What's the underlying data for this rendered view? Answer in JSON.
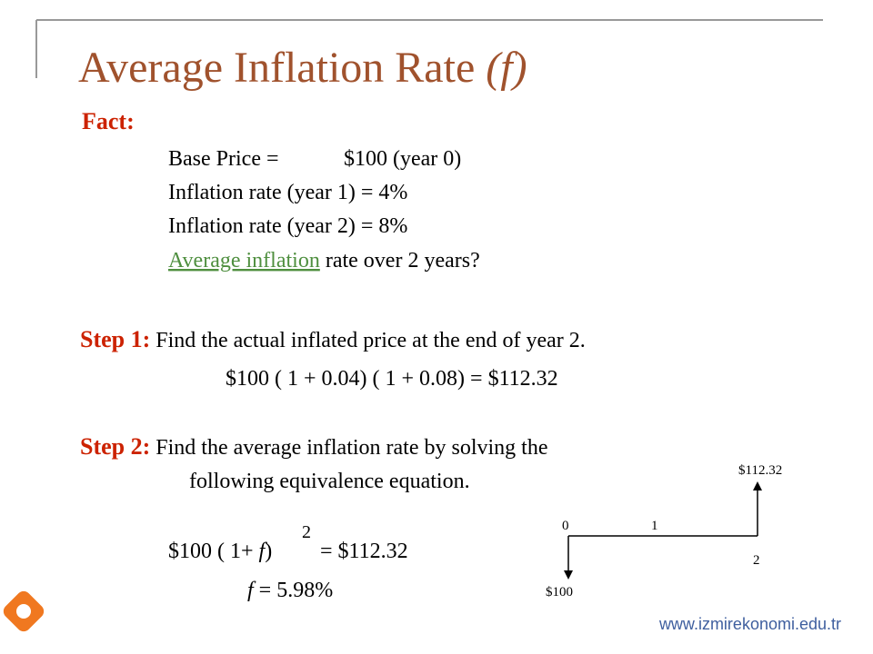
{
  "title": "Average Inflation Rate",
  "title_var": "(f)",
  "fact": {
    "heading": "Fact:",
    "base_label": "Base Price =",
    "base_value": "$100 (year 0)",
    "line1": "Inflation rate (year 1) = 4%",
    "line2": "Inflation rate (year 2) = 8%",
    "question_link": "Average inflation",
    "question_rest": " rate over 2 years?"
  },
  "step1": {
    "label": "Step 1:",
    "text": "Find the actual inflated price at the end of year 2.",
    "equation": "$100 ( 1 + 0.04) ( 1 + 0.08) = $112.32"
  },
  "step2": {
    "label": "Step 2:",
    "text1": "Find the average inflation rate by solving the",
    "text2": "following equivalence equation.",
    "equation_left": "$100 ( 1+ ",
    "equation_var": "f",
    "equation_close": ")",
    "exponent": "2",
    "equation_right": "= $112.32",
    "result_var": "f",
    "result_rest": " = 5.98%"
  },
  "diagram": {
    "t0": "0",
    "t1": "1",
    "t2": "2",
    "outflow": "$100",
    "inflow": "$112.32"
  },
  "footer": "www.izmirekonomi.edu.tr"
}
